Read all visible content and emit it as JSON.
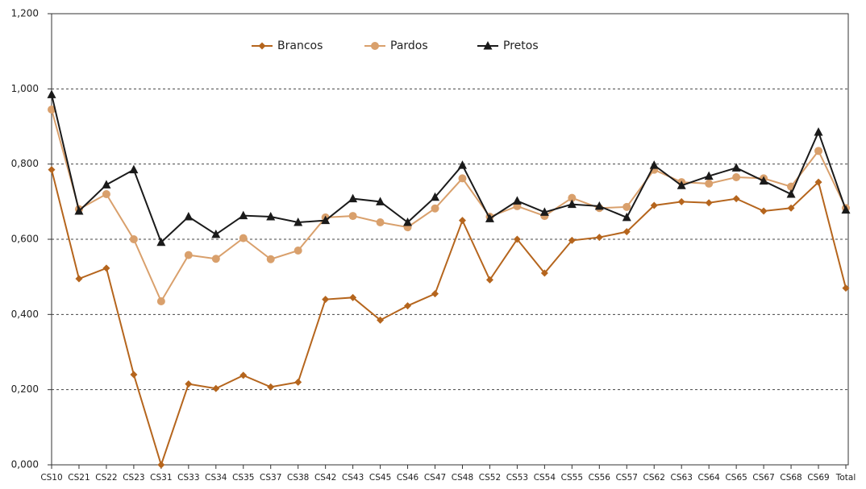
{
  "chart_data": {
    "type": "line",
    "categories": [
      "CS10",
      "CS21",
      "CS22",
      "CS23",
      "CS31",
      "CS33",
      "CS34",
      "CS35",
      "CS37",
      "CS38",
      "CS42",
      "CS43",
      "CS45",
      "CS46",
      "CS47",
      "CS48",
      "CS52",
      "CS53",
      "CS54",
      "CS55",
      "CS56",
      "CS57",
      "CS62",
      "CS63",
      "CS64",
      "CS65",
      "CS67",
      "CS68",
      "CS69",
      "Total"
    ],
    "series": [
      {
        "name": "Brancos",
        "color": "#b5651d",
        "marker": "diamond",
        "values": [
          0.785,
          0.495,
          0.523,
          0.24,
          0.0,
          0.215,
          0.203,
          0.238,
          0.207,
          0.22,
          0.44,
          0.445,
          0.385,
          0.423,
          0.455,
          0.65,
          0.492,
          0.6,
          0.51,
          0.597,
          0.605,
          0.62,
          0.69,
          0.7,
          0.697,
          0.708,
          0.675,
          0.683,
          0.752,
          0.47
        ]
      },
      {
        "name": "Pardos",
        "color": "#d9a06c",
        "marker": "circle",
        "values": [
          0.945,
          0.68,
          0.72,
          0.6,
          0.435,
          0.558,
          0.548,
          0.603,
          0.547,
          0.57,
          0.658,
          0.662,
          0.645,
          0.632,
          0.682,
          0.762,
          0.66,
          0.688,
          0.662,
          0.71,
          0.683,
          0.686,
          0.785,
          0.752,
          0.748,
          0.765,
          0.762,
          0.74,
          0.835,
          0.683
        ]
      },
      {
        "name": "Pretos",
        "color": "#1a1a1a",
        "marker": "triangle",
        "values": [
          0.985,
          0.675,
          0.745,
          0.785,
          0.592,
          0.66,
          0.613,
          0.663,
          0.66,
          0.645,
          0.65,
          0.708,
          0.7,
          0.645,
          0.712,
          0.797,
          0.655,
          0.702,
          0.672,
          0.693,
          0.688,
          0.658,
          0.797,
          0.743,
          0.768,
          0.79,
          0.755,
          0.72,
          0.885,
          0.678
        ]
      }
    ],
    "ylim": [
      0,
      1.2
    ],
    "yticks": [
      {
        "value": 0,
        "label": "0,000"
      },
      {
        "value": 0.2,
        "label": "0,200"
      },
      {
        "value": 0.4,
        "label": "0,400"
      },
      {
        "value": 0.6,
        "label": "0,600"
      },
      {
        "value": 0.8,
        "label": "0,800"
      },
      {
        "value": 1.0,
        "label": "1,000"
      },
      {
        "value": 1.2,
        "label": "1,200"
      }
    ],
    "grid": true,
    "legend": "top"
  }
}
